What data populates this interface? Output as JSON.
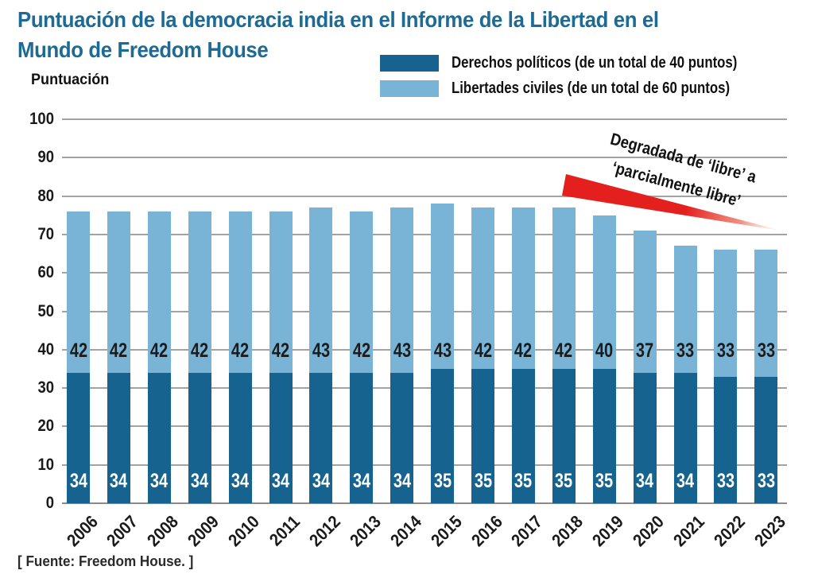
{
  "title": {
    "lines": [
      "Puntuación de la democracia india en el Informe de la Libertad en el",
      "Mundo de Freedom House"
    ],
    "color": "#1d6b94"
  },
  "axis_title": "Puntuación",
  "legend": [
    {
      "label": "Derechos políticos (de un total de 40 puntos)",
      "color": "#15638e"
    },
    {
      "label": "Libertades civiles (de un total de 60 puntos)",
      "color": "#79b4d6"
    }
  ],
  "annotation": {
    "lines": [
      "Degradada de ‘libre’ a",
      "‘parcialmente libre’"
    ],
    "arrow_color": "#e3201e"
  },
  "source": "[ Fuente: Freedom House. ]",
  "colors": {
    "political_bar": "#15638e",
    "civil_bar": "#79b4d6",
    "grid": "#a3a3a3",
    "axis": "#8a8a8a",
    "title": "#1d6b94",
    "arrow": "#e3201e"
  },
  "chart_data": {
    "type": "bar",
    "stacked": true,
    "title": "Puntuación de la democracia india en el Informe de la Libertad en el Mundo de Freedom House",
    "ylabel": "Puntuación",
    "ylim": [
      0,
      100
    ],
    "yticks": [
      0,
      10,
      20,
      30,
      40,
      50,
      60,
      70,
      80,
      90,
      100
    ],
    "grid": true,
    "legend_position": "top-right",
    "annotation": "Degradada de ‘libre’ a ‘parcialmente libre’",
    "categories": [
      "2006",
      "2007",
      "2008",
      "2009",
      "2010",
      "2011",
      "2012",
      "2013",
      "2014",
      "2015",
      "2016",
      "2017",
      "2018",
      "2019",
      "2020",
      "2021",
      "2022",
      "2023"
    ],
    "series": [
      {
        "name": "Derechos políticos (de un total de 40 puntos)",
        "color": "#15638e",
        "label_color": "#ffffff",
        "values": [
          34,
          34,
          34,
          34,
          34,
          34,
          34,
          34,
          34,
          35,
          35,
          35,
          35,
          35,
          34,
          34,
          33,
          33
        ]
      },
      {
        "name": "Libertades civiles (de un total de 60 puntos)",
        "color": "#79b4d6",
        "label_color": "#1c1c1c",
        "values": [
          42,
          42,
          42,
          42,
          42,
          42,
          43,
          42,
          43,
          43,
          42,
          42,
          42,
          40,
          37,
          33,
          33,
          33
        ]
      }
    ],
    "totals": [
      76,
      76,
      76,
      76,
      76,
      76,
      77,
      76,
      77,
      78,
      77,
      77,
      77,
      75,
      71,
      67,
      66,
      66
    ]
  }
}
